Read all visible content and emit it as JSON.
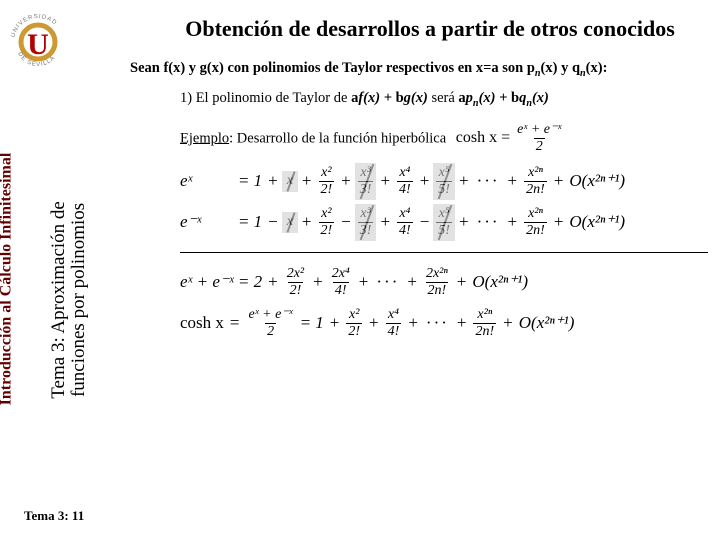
{
  "logo": {
    "top_text": "UNIVERSIDAD",
    "bottom_text": "DE SEVILLA",
    "u_color": "#b30000",
    "ring_color": "#cc9933"
  },
  "title": "Obtención de desarrollos a partir de otros conocidos",
  "subtitle_prefix": "Sean f(x) y g(x) con polinomios de Taylor respectivos en x=a son  p",
  "subtitle_mid": "(x) y q",
  "subtitle_suffix": "(x):",
  "sidebar": {
    "course": "Introducción al Cálculo Infinitesimal",
    "topic_l1": "Tema 3: Aproximación de",
    "topic_l2": "funciones por polinomios"
  },
  "body": {
    "item1_pre": "1) El polinomio de Taylor de ",
    "item1_mid": "f(x) + ",
    "item1_mid2": "g(x)",
    "item1_sera": " será ",
    "item1_post1": "p",
    "item1_post2": "(x) + ",
    "item1_post3": "q",
    "item1_post4": "(x)",
    "example_label": "Ejemplo",
    "example_text": ": Desarrollo de la función hiperbólica",
    "cosh_lhs": "cosh x",
    "cosh_rhs_num": "eˣ + e⁻ˣ",
    "cosh_rhs_den": "2"
  },
  "series": {
    "ex": {
      "lhs": "eˣ",
      "terms": [
        "1",
        "x",
        "x²|2!",
        "x³|3!",
        "x⁴|4!",
        "x⁵|5!"
      ],
      "tail": "x²ⁿ|2n!",
      "bigO": "O(x²ⁿ⁺¹)",
      "cancel_idx": [
        1,
        3,
        5
      ]
    },
    "emx": {
      "lhs": "e⁻ˣ",
      "terms": [
        "1",
        "-x",
        "x²|2!",
        "-x³|3!",
        "x⁴|4!",
        "-x⁵|5!"
      ],
      "tail": "x²ⁿ|2n!",
      "bigO": "O(x²ⁿ⁺¹)",
      "cancel_idx": [
        1,
        3,
        5
      ]
    },
    "sum": {
      "lhs": "eˣ + e⁻ˣ",
      "terms": [
        "2",
        "2x²|2!",
        "2x⁴|4!"
      ],
      "tail": "2x²ⁿ|2n!",
      "bigO": "O(x²ⁿ⁺¹)"
    },
    "cosh": {
      "lhs_text": "cosh x",
      "lhs_frac_num": "eˣ + e⁻ˣ",
      "lhs_frac_den": "2",
      "terms": [
        "1",
        "x²|2!",
        "x⁴|4!"
      ],
      "tail": "x²ⁿ|2n!",
      "bigO": "O(x²ⁿ⁺¹)"
    }
  },
  "footer": "Tema 3: 11",
  "colors": {
    "bg": "#ffffff",
    "text": "#000000",
    "accent": "#660000",
    "cancel": "#cccccc"
  }
}
